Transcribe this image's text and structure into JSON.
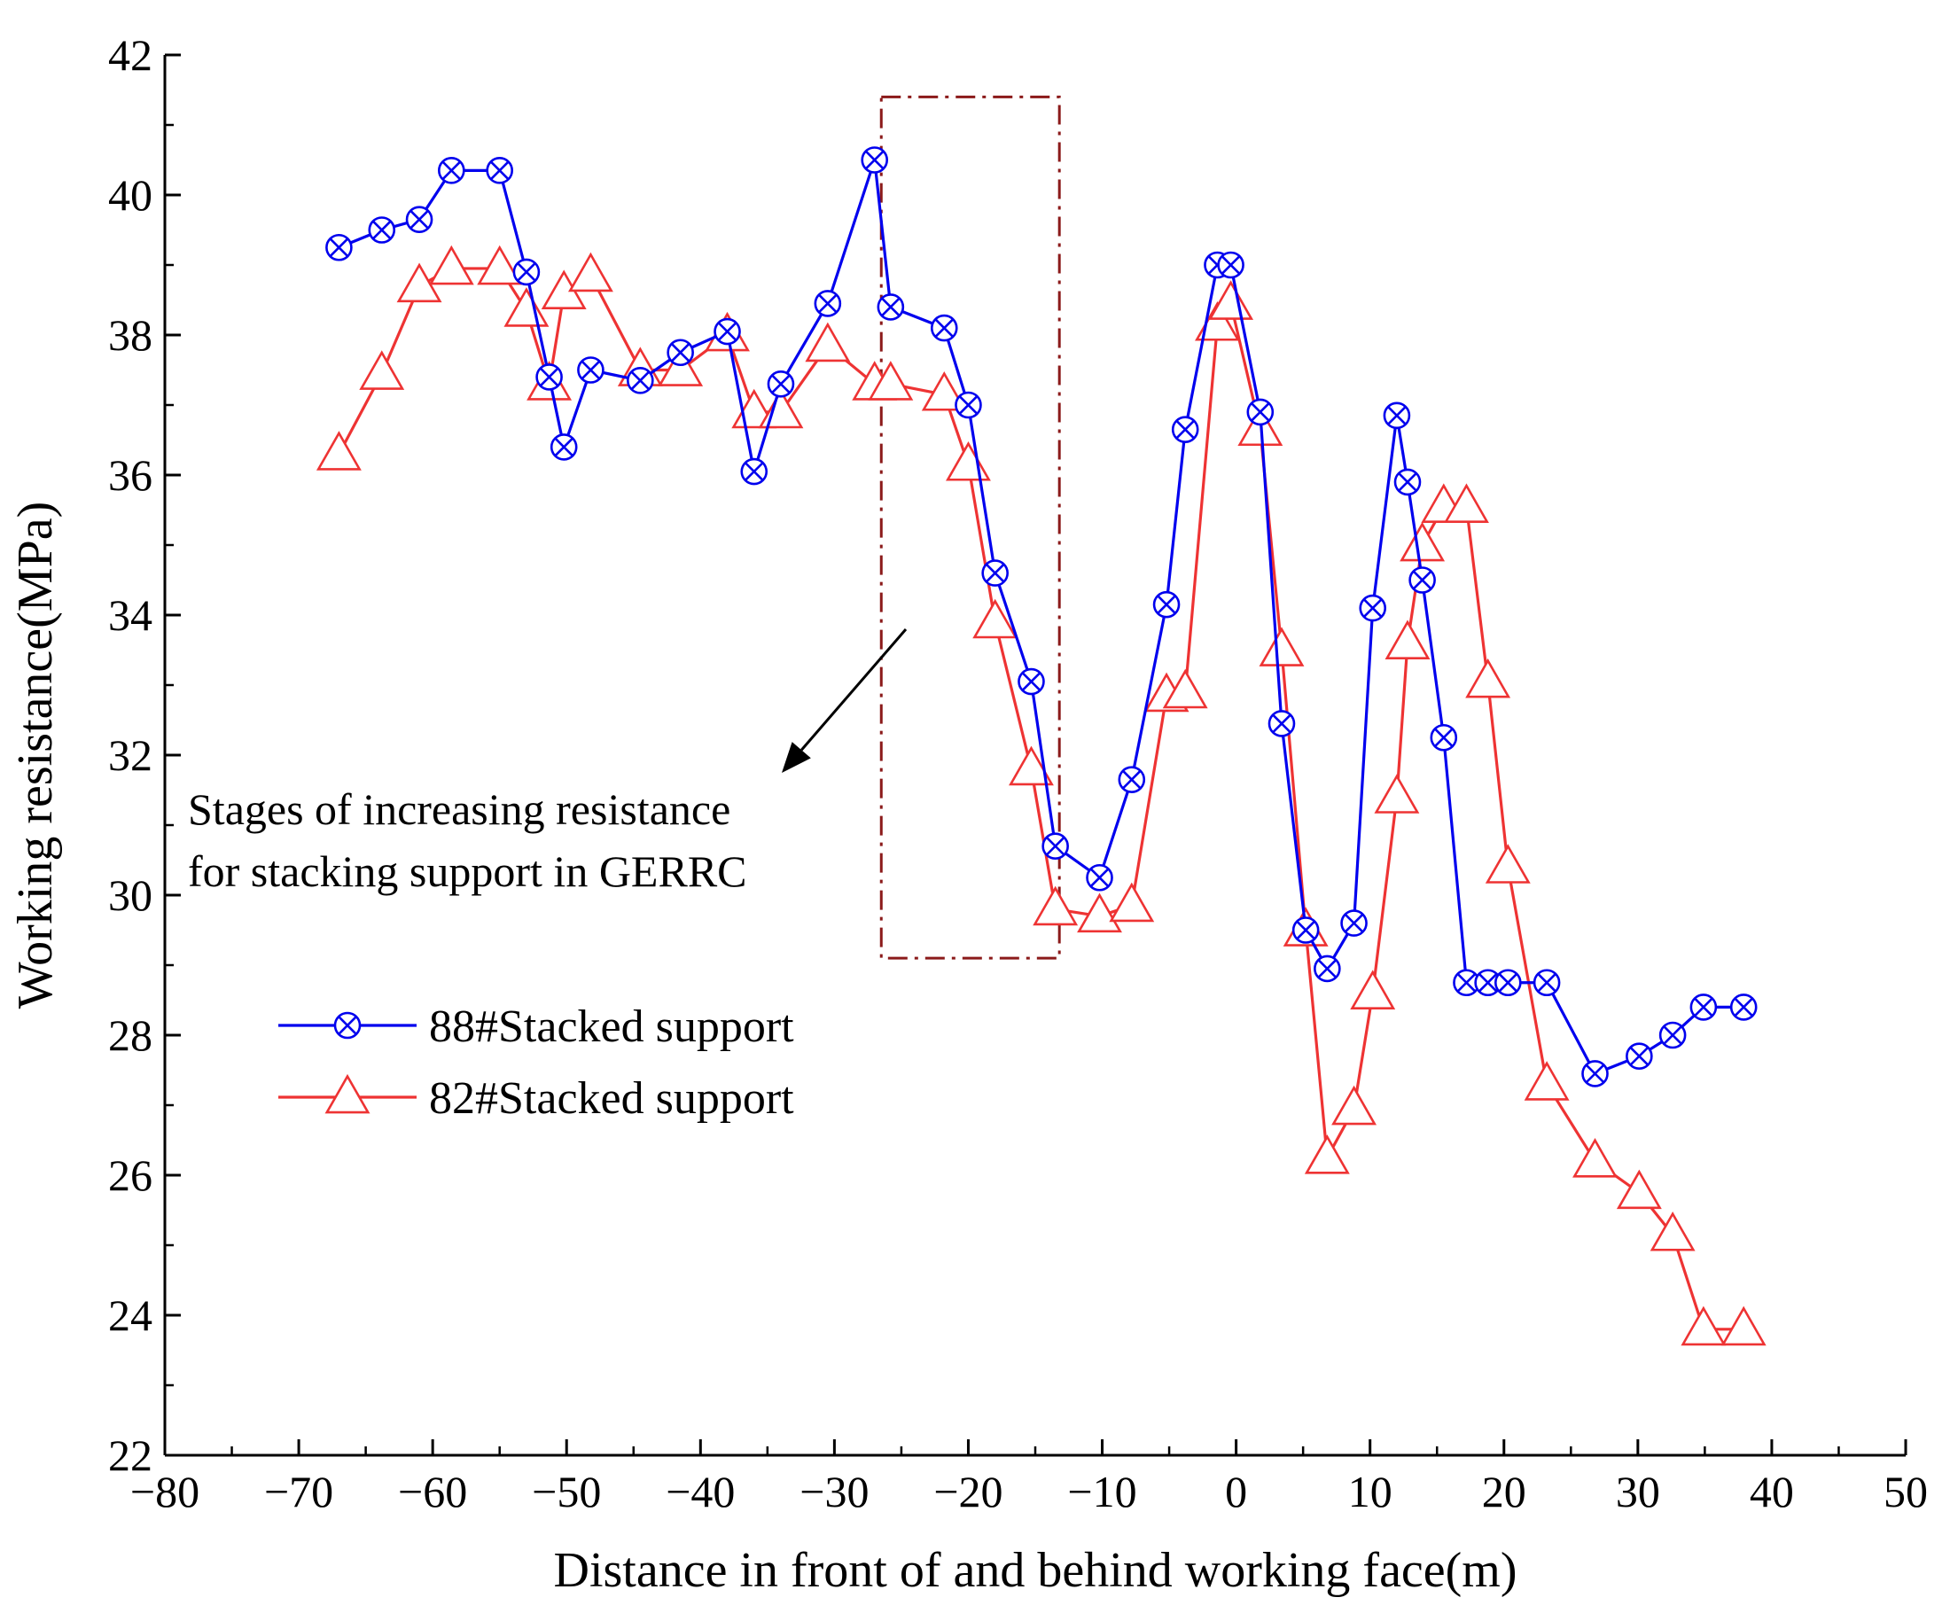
{
  "chart_data": {
    "type": "line",
    "title": "",
    "xlabel": "Distance in front of and behind working face(m)",
    "ylabel": "Working resistance(MPa)",
    "xlim": [
      -80,
      50
    ],
    "ylim": [
      22,
      42
    ],
    "xticks": [
      -80,
      -70,
      -60,
      -50,
      -40,
      -30,
      -20,
      -10,
      0,
      10,
      20,
      30,
      40,
      50
    ],
    "yticks": [
      22,
      24,
      26,
      28,
      30,
      32,
      34,
      36,
      38,
      40,
      42
    ],
    "xtick_labels": [
      "−80",
      "−70",
      "−60",
      "−50",
      "−40",
      "−30",
      "−20",
      "−10",
      "0",
      "10",
      "20",
      "30",
      "40",
      "50"
    ],
    "ytick_labels": [
      "22",
      "24",
      "26",
      "28",
      "30",
      "32",
      "34",
      "36",
      "38",
      "40",
      "42"
    ],
    "grid": false,
    "legend_position": "lower-left",
    "series": [
      {
        "name": "88#Stacked support",
        "color": "#0000ee",
        "marker": "circle-x",
        "x": [
          -67.0,
          -63.8,
          -61.0,
          -58.6,
          -55.0,
          -53.0,
          -51.3,
          -50.2,
          -48.2,
          -44.5,
          -41.5,
          -38.0,
          -36.0,
          -34.0,
          -30.5,
          -27.0,
          -25.8,
          -21.8,
          -20.0,
          -18.0,
          -15.3,
          -13.5,
          -10.2,
          -7.8,
          -5.2,
          -3.8,
          -1.4,
          -0.4,
          1.8,
          3.4,
          5.2,
          6.8,
          8.8,
          10.2,
          12.0,
          12.8,
          13.9,
          15.5,
          17.2,
          18.8,
          20.3,
          23.2,
          26.8,
          30.1,
          32.6,
          34.9,
          37.9
        ],
        "y": [
          39.25,
          39.5,
          39.65,
          40.35,
          40.35,
          38.9,
          37.4,
          36.4,
          37.5,
          37.35,
          37.75,
          38.05,
          36.05,
          37.3,
          38.45,
          40.5,
          38.4,
          38.1,
          37.0,
          34.6,
          33.05,
          30.7,
          30.25,
          31.65,
          34.15,
          36.65,
          39.0,
          39.0,
          36.9,
          32.45,
          29.5,
          28.95,
          29.6,
          34.1,
          36.85,
          35.9,
          34.5,
          32.25,
          28.75,
          28.75,
          28.75,
          28.75,
          27.45,
          27.7,
          28.0,
          28.4,
          28.4
        ]
      },
      {
        "name": "82#Stacked support",
        "color": "#ee3333",
        "marker": "triangle",
        "x": [
          -67.0,
          -63.8,
          -61.0,
          -58.6,
          -55.0,
          -53.0,
          -51.3,
          -50.2,
          -48.2,
          -44.5,
          -41.5,
          -38.0,
          -36.0,
          -34.0,
          -30.5,
          -27.0,
          -25.8,
          -21.8,
          -20.0,
          -18.0,
          -15.3,
          -13.5,
          -10.2,
          -7.8,
          -5.2,
          -3.8,
          -1.4,
          -0.4,
          1.8,
          3.4,
          5.2,
          6.8,
          8.8,
          10.2,
          12.0,
          12.8,
          13.9,
          15.5,
          17.2,
          18.8,
          20.3,
          23.2,
          26.8,
          30.1,
          32.6,
          34.9,
          37.9
        ],
        "y": [
          36.3,
          37.45,
          38.7,
          38.95,
          38.95,
          38.35,
          37.3,
          38.6,
          38.85,
          37.5,
          37.5,
          38.0,
          36.9,
          36.9,
          37.85,
          37.3,
          37.3,
          37.15,
          36.15,
          33.9,
          31.8,
          29.8,
          29.7,
          29.85,
          32.85,
          32.9,
          38.15,
          38.45,
          36.65,
          33.5,
          29.5,
          26.25,
          26.95,
          28.6,
          31.4,
          33.6,
          35.0,
          35.55,
          35.55,
          33.05,
          30.4,
          27.3,
          26.2,
          25.75,
          25.15,
          23.8,
          23.8
        ]
      }
    ],
    "annotation": {
      "lines": [
        "Stages of increasing resistance",
        "for stacking support in GERRC"
      ],
      "highlight_x_range": [
        -26.5,
        -13.2
      ],
      "highlight_y_range": [
        29.1,
        41.4
      ],
      "highlight_color": "#8b1a1a"
    }
  }
}
